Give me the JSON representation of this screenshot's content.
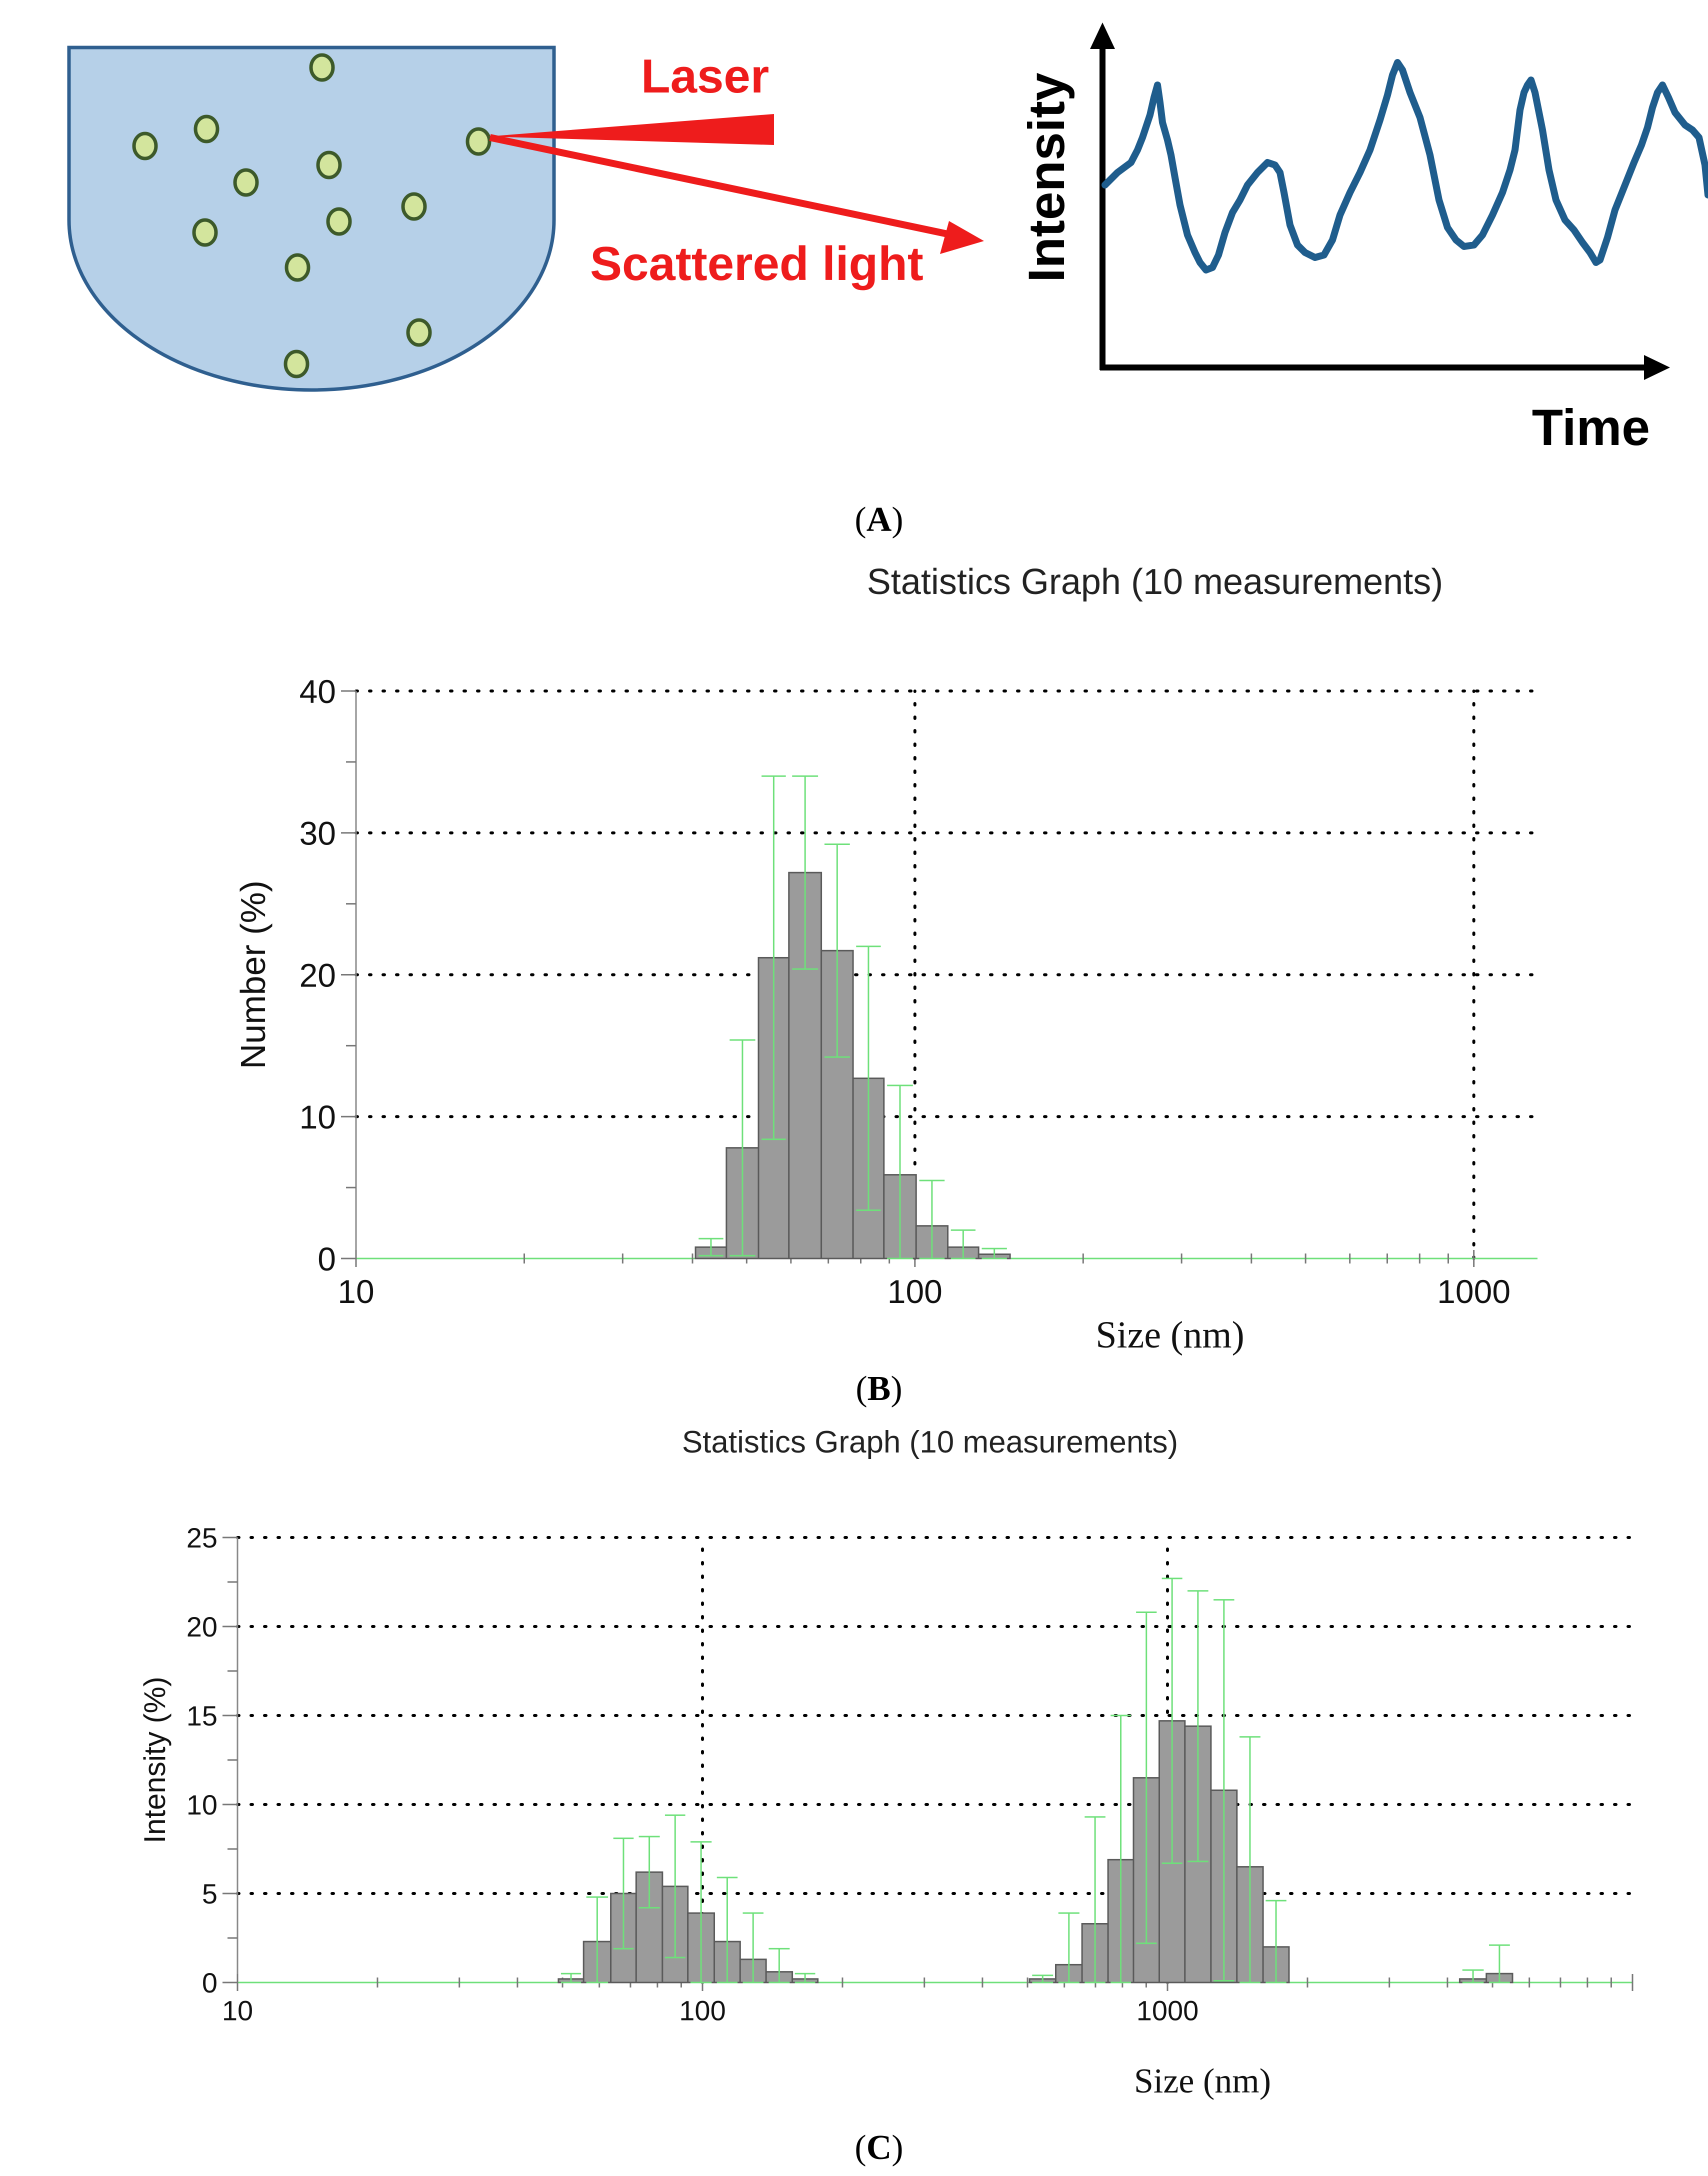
{
  "figure_a": {
    "laser_label": "Laser",
    "scattered_label": "Scattered light",
    "y_axis_label": "Intensity",
    "x_axis_label": "Time",
    "panel_label": "A",
    "colors": {
      "container_fill": "#b6d0e8",
      "container_stroke": "#2f5f8f",
      "particle_fill": "#d3e59d",
      "particle_stroke": "#3d5a2a",
      "laser": "#ee1c1c",
      "trace": "#1f5d8d"
    }
  },
  "figure_b_label": "B",
  "figure_c_label": "C",
  "chart_data": [
    {
      "id": "B",
      "type": "bar",
      "title": "Statistics Graph (10 measurements)",
      "xlabel": "Size (nm)",
      "ylabel": "Number (%)",
      "xscale": "log",
      "xlim": [
        10,
        1300
      ],
      "ylim": [
        0,
        40
      ],
      "yticks": [
        "0",
        "10",
        "20",
        "30",
        "40"
      ],
      "xtick_labels": [
        "10",
        "100",
        "1000"
      ],
      "grid": true,
      "bins": [
        {
          "from": 40.5,
          "to": 46.0,
          "value": 0.8,
          "err": 0.6
        },
        {
          "from": 46.0,
          "to": 52.5,
          "value": 7.8,
          "err": 7.6
        },
        {
          "from": 52.5,
          "to": 59.5,
          "value": 21.2,
          "err": 12.8
        },
        {
          "from": 59.5,
          "to": 68.0,
          "value": 27.2,
          "err": 6.8
        },
        {
          "from": 68.0,
          "to": 77.5,
          "value": 21.7,
          "err": 7.5
        },
        {
          "from": 77.5,
          "to": 88.0,
          "value": 12.7,
          "err": 9.3
        },
        {
          "from": 88.0,
          "to": 100.5,
          "value": 5.9,
          "err": 6.3
        },
        {
          "from": 100.5,
          "to": 114.5,
          "value": 2.3,
          "err": 3.2
        },
        {
          "from": 114.5,
          "to": 130.0,
          "value": 0.8,
          "err": 1.2
        },
        {
          "from": 130.0,
          "to": 148.0,
          "value": 0.3,
          "err": 0.4
        }
      ]
    },
    {
      "id": "C",
      "type": "bar",
      "title": "Statistics Graph (10 measurements)",
      "xlabel": "Size (nm)",
      "ylabel": "Intensity (%)",
      "xscale": "log",
      "xlim": [
        10,
        10000
      ],
      "ylim": [
        0,
        25
      ],
      "yticks": [
        "0",
        "5",
        "10",
        "15",
        "20",
        "25"
      ],
      "xtick_labels": [
        "10",
        "100",
        "1000"
      ],
      "grid": true,
      "bins": [
        {
          "from": 49.0,
          "to": 55.5,
          "value": 0.2,
          "err": 0.3
        },
        {
          "from": 55.5,
          "to": 63.5,
          "value": 2.3,
          "err": 2.5
        },
        {
          "from": 63.5,
          "to": 72.0,
          "value": 5.0,
          "err": 3.1
        },
        {
          "from": 72.0,
          "to": 82.0,
          "value": 6.2,
          "err": 2.0
        },
        {
          "from": 82.0,
          "to": 93.0,
          "value": 5.4,
          "err": 4.0
        },
        {
          "from": 93.0,
          "to": 106.0,
          "value": 3.9,
          "err": 4.0
        },
        {
          "from": 106.0,
          "to": 120.5,
          "value": 2.3,
          "err": 3.6
        },
        {
          "from": 120.5,
          "to": 137.0,
          "value": 1.3,
          "err": 2.6
        },
        {
          "from": 137.0,
          "to": 156.0,
          "value": 0.6,
          "err": 1.3
        },
        {
          "from": 156.0,
          "to": 177.0,
          "value": 0.2,
          "err": 0.3
        },
        {
          "from": 505.0,
          "to": 575.0,
          "value": 0.2,
          "err": 0.2
        },
        {
          "from": 575.0,
          "to": 655.0,
          "value": 1.0,
          "err": 2.9
        },
        {
          "from": 655.0,
          "to": 745.0,
          "value": 3.3,
          "err": 6.0
        },
        {
          "from": 745.0,
          "to": 845.0,
          "value": 6.9,
          "err": 8.1
        },
        {
          "from": 845.0,
          "to": 960.0,
          "value": 11.5,
          "err": 9.3
        },
        {
          "from": 960.0,
          "to": 1090.0,
          "value": 14.7,
          "err": 8.0
        },
        {
          "from": 1090.0,
          "to": 1240.0,
          "value": 14.4,
          "err": 7.6
        },
        {
          "from": 1240.0,
          "to": 1410.0,
          "value": 10.8,
          "err": 10.7
        },
        {
          "from": 1410.0,
          "to": 1605.0,
          "value": 6.5,
          "err": 7.3
        },
        {
          "from": 1605.0,
          "to": 1825.0,
          "value": 2.0,
          "err": 2.6
        },
        {
          "from": 4250.0,
          "to": 4850.0,
          "value": 0.2,
          "err": 0.5
        },
        {
          "from": 4850.0,
          "to": 5520.0,
          "value": 0.5,
          "err": 1.6
        }
      ]
    }
  ]
}
